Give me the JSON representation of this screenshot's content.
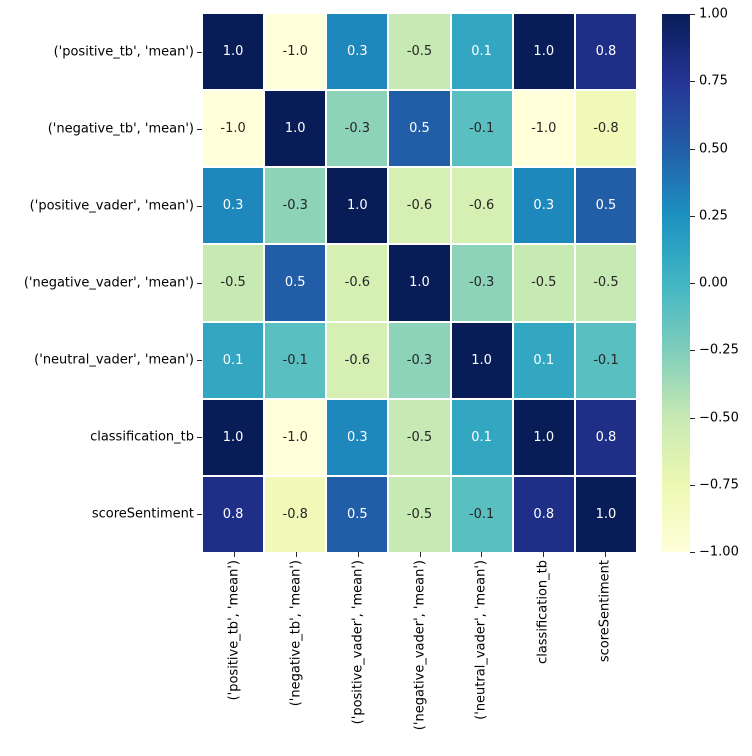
{
  "chart_data": {
    "type": "heatmap",
    "description": "correlation-matrix-heatmap",
    "labels": [
      "('positive_tb', 'mean')",
      "('negative_tb', 'mean')",
      "('positive_vader', 'mean')",
      "('negative_vader', 'mean')",
      "('neutral_vader', 'mean')",
      "classification_tb",
      "scoreSentiment"
    ],
    "matrix": [
      [
        1.0,
        -1.0,
        0.3,
        -0.5,
        0.1,
        1.0,
        0.8
      ],
      [
        -1.0,
        1.0,
        -0.3,
        0.5,
        -0.1,
        -1.0,
        -0.8
      ],
      [
        0.3,
        -0.3,
        1.0,
        -0.6,
        -0.6,
        0.3,
        0.5
      ],
      [
        -0.5,
        0.5,
        -0.6,
        1.0,
        -0.3,
        -0.5,
        -0.5
      ],
      [
        0.1,
        -0.1,
        -0.6,
        -0.3,
        1.0,
        0.1,
        -0.1
      ],
      [
        1.0,
        -1.0,
        0.3,
        -0.5,
        0.1,
        1.0,
        0.8
      ],
      [
        0.8,
        -0.8,
        0.5,
        -0.5,
        -0.1,
        0.8,
        1.0
      ]
    ],
    "vmin": -1.0,
    "vmax": 1.0,
    "annotation_decimals": 1,
    "grid": "white cell separators",
    "legend_position": "right colorbar",
    "colormap": {
      "name": "YlGnBu",
      "stops": [
        "#ffffd9",
        "#edf8b1",
        "#c7e9b4",
        "#7fcdbb",
        "#41b6c4",
        "#1d91c0",
        "#225ea8",
        "#253494",
        "#081d58"
      ]
    },
    "annotation_text_colors": {
      "light": "#ffffff",
      "dark": "#262626"
    },
    "colorbar": {
      "tick_values": [
        1.0,
        0.75,
        0.5,
        0.25,
        0.0,
        -0.25,
        -0.5,
        -0.75,
        -1.0
      ],
      "tick_labels": [
        "1.00",
        "0.75",
        "0.50",
        "0.25",
        "0.00",
        "−0.25",
        "−0.50",
        "−0.75",
        "−1.00"
      ]
    },
    "title": "",
    "xlabel": "",
    "ylabel": ""
  }
}
